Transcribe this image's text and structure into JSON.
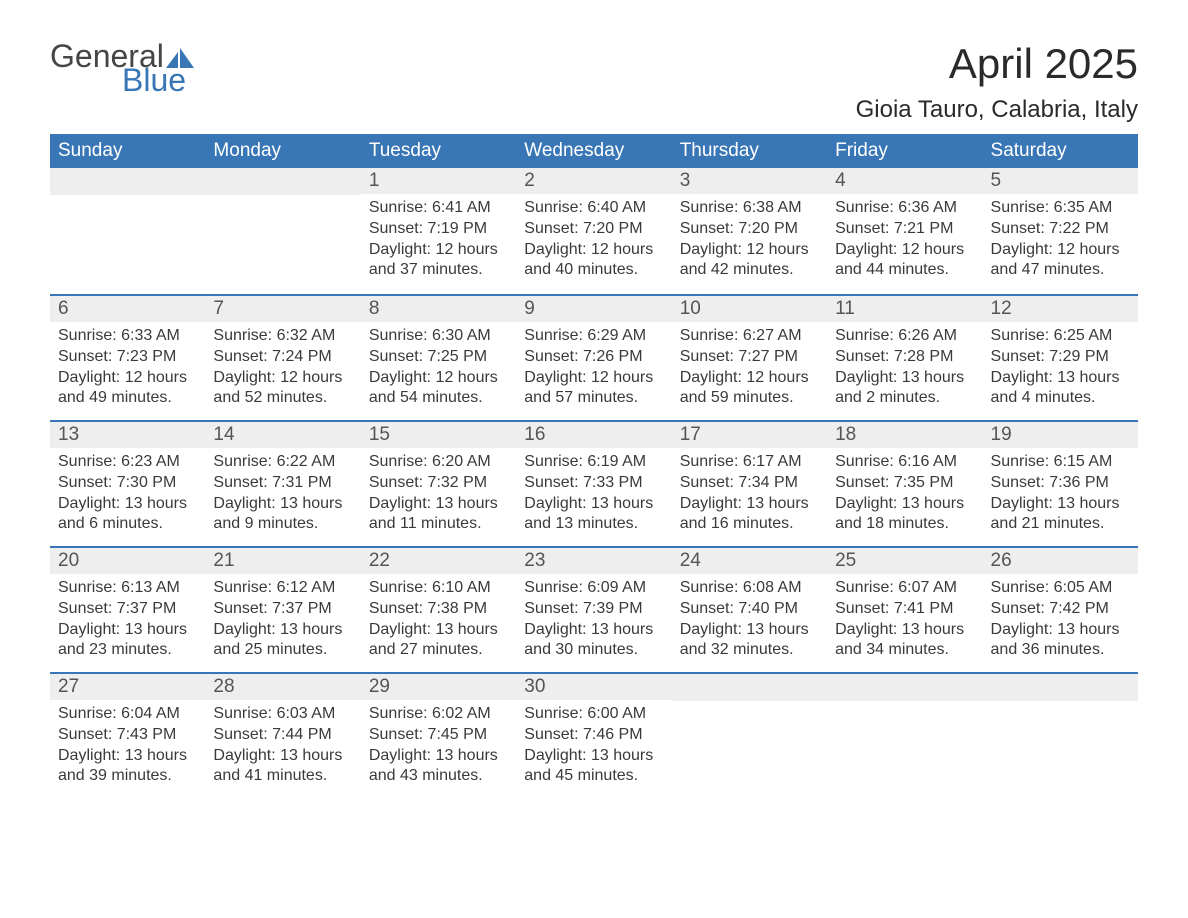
{
  "logo": {
    "text_general": "General",
    "text_blue": "Blue",
    "icon_color": "#3876b5"
  },
  "title": "April 2025",
  "location": "Gioia Tauro, Calabria, Italy",
  "colors": {
    "header_bg": "#3876b5",
    "header_text": "#ffffff",
    "day_num_bg": "#eeeeee",
    "day_num_text": "#555555",
    "body_text": "#3a3a3a",
    "border": "#3876b5"
  },
  "day_headers": [
    "Sunday",
    "Monday",
    "Tuesday",
    "Wednesday",
    "Thursday",
    "Friday",
    "Saturday"
  ],
  "weeks": [
    [
      {
        "num": "",
        "sunrise": "",
        "sunset": "",
        "daylight1": "",
        "daylight2": ""
      },
      {
        "num": "",
        "sunrise": "",
        "sunset": "",
        "daylight1": "",
        "daylight2": ""
      },
      {
        "num": "1",
        "sunrise": "Sunrise: 6:41 AM",
        "sunset": "Sunset: 7:19 PM",
        "daylight1": "Daylight: 12 hours",
        "daylight2": "and 37 minutes."
      },
      {
        "num": "2",
        "sunrise": "Sunrise: 6:40 AM",
        "sunset": "Sunset: 7:20 PM",
        "daylight1": "Daylight: 12 hours",
        "daylight2": "and 40 minutes."
      },
      {
        "num": "3",
        "sunrise": "Sunrise: 6:38 AM",
        "sunset": "Sunset: 7:20 PM",
        "daylight1": "Daylight: 12 hours",
        "daylight2": "and 42 minutes."
      },
      {
        "num": "4",
        "sunrise": "Sunrise: 6:36 AM",
        "sunset": "Sunset: 7:21 PM",
        "daylight1": "Daylight: 12 hours",
        "daylight2": "and 44 minutes."
      },
      {
        "num": "5",
        "sunrise": "Sunrise: 6:35 AM",
        "sunset": "Sunset: 7:22 PM",
        "daylight1": "Daylight: 12 hours",
        "daylight2": "and 47 minutes."
      }
    ],
    [
      {
        "num": "6",
        "sunrise": "Sunrise: 6:33 AM",
        "sunset": "Sunset: 7:23 PM",
        "daylight1": "Daylight: 12 hours",
        "daylight2": "and 49 minutes."
      },
      {
        "num": "7",
        "sunrise": "Sunrise: 6:32 AM",
        "sunset": "Sunset: 7:24 PM",
        "daylight1": "Daylight: 12 hours",
        "daylight2": "and 52 minutes."
      },
      {
        "num": "8",
        "sunrise": "Sunrise: 6:30 AM",
        "sunset": "Sunset: 7:25 PM",
        "daylight1": "Daylight: 12 hours",
        "daylight2": "and 54 minutes."
      },
      {
        "num": "9",
        "sunrise": "Sunrise: 6:29 AM",
        "sunset": "Sunset: 7:26 PM",
        "daylight1": "Daylight: 12 hours",
        "daylight2": "and 57 minutes."
      },
      {
        "num": "10",
        "sunrise": "Sunrise: 6:27 AM",
        "sunset": "Sunset: 7:27 PM",
        "daylight1": "Daylight: 12 hours",
        "daylight2": "and 59 minutes."
      },
      {
        "num": "11",
        "sunrise": "Sunrise: 6:26 AM",
        "sunset": "Sunset: 7:28 PM",
        "daylight1": "Daylight: 13 hours",
        "daylight2": "and 2 minutes."
      },
      {
        "num": "12",
        "sunrise": "Sunrise: 6:25 AM",
        "sunset": "Sunset: 7:29 PM",
        "daylight1": "Daylight: 13 hours",
        "daylight2": "and 4 minutes."
      }
    ],
    [
      {
        "num": "13",
        "sunrise": "Sunrise: 6:23 AM",
        "sunset": "Sunset: 7:30 PM",
        "daylight1": "Daylight: 13 hours",
        "daylight2": "and 6 minutes."
      },
      {
        "num": "14",
        "sunrise": "Sunrise: 6:22 AM",
        "sunset": "Sunset: 7:31 PM",
        "daylight1": "Daylight: 13 hours",
        "daylight2": "and 9 minutes."
      },
      {
        "num": "15",
        "sunrise": "Sunrise: 6:20 AM",
        "sunset": "Sunset: 7:32 PM",
        "daylight1": "Daylight: 13 hours",
        "daylight2": "and 11 minutes."
      },
      {
        "num": "16",
        "sunrise": "Sunrise: 6:19 AM",
        "sunset": "Sunset: 7:33 PM",
        "daylight1": "Daylight: 13 hours",
        "daylight2": "and 13 minutes."
      },
      {
        "num": "17",
        "sunrise": "Sunrise: 6:17 AM",
        "sunset": "Sunset: 7:34 PM",
        "daylight1": "Daylight: 13 hours",
        "daylight2": "and 16 minutes."
      },
      {
        "num": "18",
        "sunrise": "Sunrise: 6:16 AM",
        "sunset": "Sunset: 7:35 PM",
        "daylight1": "Daylight: 13 hours",
        "daylight2": "and 18 minutes."
      },
      {
        "num": "19",
        "sunrise": "Sunrise: 6:15 AM",
        "sunset": "Sunset: 7:36 PM",
        "daylight1": "Daylight: 13 hours",
        "daylight2": "and 21 minutes."
      }
    ],
    [
      {
        "num": "20",
        "sunrise": "Sunrise: 6:13 AM",
        "sunset": "Sunset: 7:37 PM",
        "daylight1": "Daylight: 13 hours",
        "daylight2": "and 23 minutes."
      },
      {
        "num": "21",
        "sunrise": "Sunrise: 6:12 AM",
        "sunset": "Sunset: 7:37 PM",
        "daylight1": "Daylight: 13 hours",
        "daylight2": "and 25 minutes."
      },
      {
        "num": "22",
        "sunrise": "Sunrise: 6:10 AM",
        "sunset": "Sunset: 7:38 PM",
        "daylight1": "Daylight: 13 hours",
        "daylight2": "and 27 minutes."
      },
      {
        "num": "23",
        "sunrise": "Sunrise: 6:09 AM",
        "sunset": "Sunset: 7:39 PM",
        "daylight1": "Daylight: 13 hours",
        "daylight2": "and 30 minutes."
      },
      {
        "num": "24",
        "sunrise": "Sunrise: 6:08 AM",
        "sunset": "Sunset: 7:40 PM",
        "daylight1": "Daylight: 13 hours",
        "daylight2": "and 32 minutes."
      },
      {
        "num": "25",
        "sunrise": "Sunrise: 6:07 AM",
        "sunset": "Sunset: 7:41 PM",
        "daylight1": "Daylight: 13 hours",
        "daylight2": "and 34 minutes."
      },
      {
        "num": "26",
        "sunrise": "Sunrise: 6:05 AM",
        "sunset": "Sunset: 7:42 PM",
        "daylight1": "Daylight: 13 hours",
        "daylight2": "and 36 minutes."
      }
    ],
    [
      {
        "num": "27",
        "sunrise": "Sunrise: 6:04 AM",
        "sunset": "Sunset: 7:43 PM",
        "daylight1": "Daylight: 13 hours",
        "daylight2": "and 39 minutes."
      },
      {
        "num": "28",
        "sunrise": "Sunrise: 6:03 AM",
        "sunset": "Sunset: 7:44 PM",
        "daylight1": "Daylight: 13 hours",
        "daylight2": "and 41 minutes."
      },
      {
        "num": "29",
        "sunrise": "Sunrise: 6:02 AM",
        "sunset": "Sunset: 7:45 PM",
        "daylight1": "Daylight: 13 hours",
        "daylight2": "and 43 minutes."
      },
      {
        "num": "30",
        "sunrise": "Sunrise: 6:00 AM",
        "sunset": "Sunset: 7:46 PM",
        "daylight1": "Daylight: 13 hours",
        "daylight2": "and 45 minutes."
      },
      {
        "num": "",
        "sunrise": "",
        "sunset": "",
        "daylight1": "",
        "daylight2": ""
      },
      {
        "num": "",
        "sunrise": "",
        "sunset": "",
        "daylight1": "",
        "daylight2": ""
      },
      {
        "num": "",
        "sunrise": "",
        "sunset": "",
        "daylight1": "",
        "daylight2": ""
      }
    ]
  ]
}
